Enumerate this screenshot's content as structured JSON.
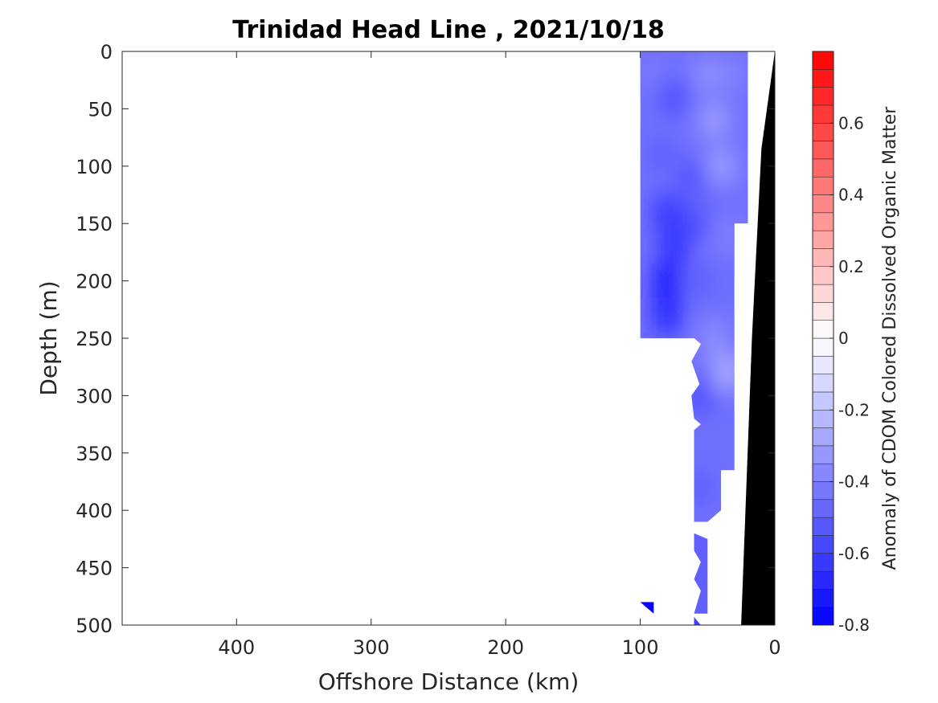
{
  "chart_data": {
    "type": "heatmap",
    "title": "Trinidad Head Line , 2021/10/18",
    "xlabel": "Offshore Distance (km)",
    "ylabel": "Depth (m)",
    "xlim": [
      485,
      0
    ],
    "ylim": [
      0,
      500
    ],
    "x_reversed": true,
    "y_reversed": true,
    "x_ticks": [
      400,
      300,
      200,
      100,
      0
    ],
    "y_ticks": [
      0,
      50,
      100,
      150,
      200,
      250,
      300,
      350,
      400,
      450,
      500
    ],
    "colorbar": {
      "label": "Anomaly of CDOM Colored Dissolved Organic Matter",
      "min": -0.8,
      "max": 0.8,
      "levels": 32,
      "ticks": [
        -0.8,
        -0.6,
        -0.4,
        -0.2,
        0,
        0.2,
        0.4,
        0.6
      ],
      "tick_labels": [
        "-0.8",
        "-0.6",
        "-0.4",
        "-0.2",
        "0",
        "0.2",
        "0.4",
        "0.6"
      ],
      "colormap": [
        "#0000ff",
        "#ffffff",
        "#ff0000"
      ]
    },
    "data_region": [
      [
        100,
        0
      ],
      [
        20,
        0
      ],
      [
        20,
        150
      ],
      [
        30,
        150
      ],
      [
        30,
        365
      ],
      [
        40,
        365
      ],
      [
        40,
        400
      ],
      [
        50,
        410
      ],
      [
        60,
        410
      ],
      [
        60,
        330
      ],
      [
        55,
        325
      ],
      [
        60,
        320
      ],
      [
        62,
        300
      ],
      [
        56,
        290
      ],
      [
        62,
        270
      ],
      [
        55,
        255
      ],
      [
        60,
        250
      ],
      [
        100,
        250
      ]
    ],
    "anomaly_cells": [
      {
        "x": 90,
        "depth": 20,
        "value": -0.42
      },
      {
        "x": 70,
        "depth": 15,
        "value": -0.45
      },
      {
        "x": 50,
        "depth": 20,
        "value": -0.35
      },
      {
        "x": 30,
        "depth": 20,
        "value": -0.4
      },
      {
        "x": 75,
        "depth": 40,
        "value": -0.55
      },
      {
        "x": 45,
        "depth": 60,
        "value": -0.3
      },
      {
        "x": 85,
        "depth": 90,
        "value": -0.5
      },
      {
        "x": 60,
        "depth": 110,
        "value": -0.55
      },
      {
        "x": 40,
        "depth": 100,
        "value": -0.3
      },
      {
        "x": 80,
        "depth": 140,
        "value": -0.62
      },
      {
        "x": 60,
        "depth": 150,
        "value": -0.55
      },
      {
        "x": 35,
        "depth": 160,
        "value": -0.4
      },
      {
        "x": 75,
        "depth": 170,
        "value": -0.65
      },
      {
        "x": 80,
        "depth": 200,
        "value": -0.72
      },
      {
        "x": 55,
        "depth": 200,
        "value": -0.5
      },
      {
        "x": 80,
        "depth": 230,
        "value": -0.68
      },
      {
        "x": 45,
        "depth": 250,
        "value": -0.35
      },
      {
        "x": 35,
        "depth": 280,
        "value": -0.25
      },
      {
        "x": 55,
        "depth": 300,
        "value": -0.55
      },
      {
        "x": 50,
        "depth": 340,
        "value": -0.45
      },
      {
        "x": 55,
        "depth": 380,
        "value": -0.5
      }
    ],
    "deep_patches": [
      {
        "polygon": [
          [
            60,
            420
          ],
          [
            50,
            425
          ],
          [
            50,
            490
          ],
          [
            60,
            490
          ],
          [
            55,
            470
          ],
          [
            60,
            460
          ],
          [
            55,
            445
          ],
          [
            60,
            435
          ]
        ],
        "value": -0.5
      },
      {
        "polygon": [
          [
            100,
            480
          ],
          [
            90,
            480
          ],
          [
            90,
            490
          ],
          [
            95,
            485
          ]
        ],
        "value": -0.78
      },
      {
        "polygon": [
          [
            60,
            493
          ],
          [
            55,
            500
          ],
          [
            60,
            500
          ]
        ],
        "value": -0.6
      }
    ],
    "seafloor": [
      [
        0,
        0
      ],
      [
        10,
        85
      ],
      [
        17,
        250
      ],
      [
        25,
        500
      ],
      [
        0,
        500
      ]
    ]
  }
}
